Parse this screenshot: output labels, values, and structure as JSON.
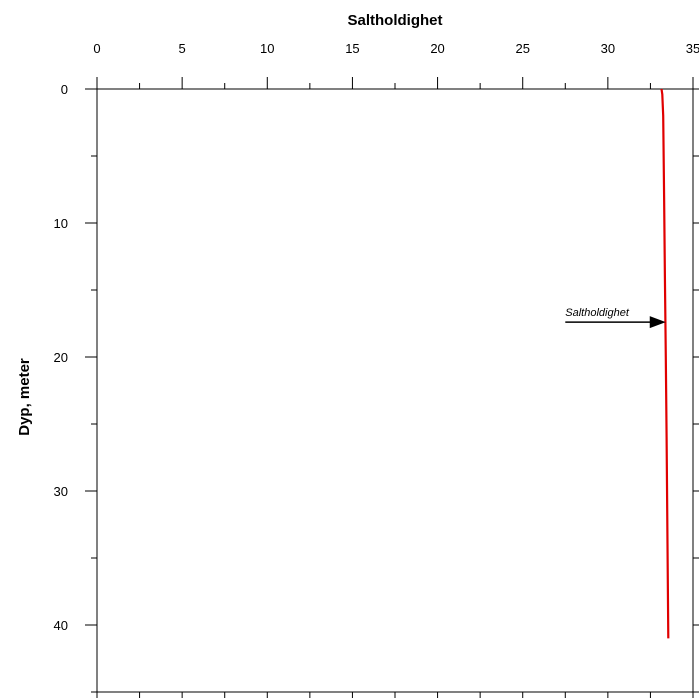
{
  "chart_data": {
    "type": "line",
    "title": "",
    "xlabel": "Saltholdighet",
    "ylabel": "Dyp, meter",
    "x_axis_position": "top",
    "y_axis_inverted": true,
    "xlim": [
      0,
      35
    ],
    "ylim": [
      45,
      0
    ],
    "xticks": [
      0,
      5,
      10,
      15,
      20,
      25,
      30,
      35
    ],
    "yticks": [
      0,
      10,
      20,
      30,
      40
    ],
    "grid": false,
    "series": [
      {
        "color": "#e00000",
        "points": [
          {
            "x": 33.15,
            "y": 0.0
          },
          {
            "x": 33.2,
            "y": 0.4
          },
          {
            "x": 33.25,
            "y": 2.0
          },
          {
            "x": 33.3,
            "y": 8.0
          },
          {
            "x": 33.35,
            "y": 14.0
          },
          {
            "x": 33.4,
            "y": 20.0
          },
          {
            "x": 33.45,
            "y": 26.0
          },
          {
            "x": 33.5,
            "y": 34.0
          },
          {
            "x": 33.55,
            "y": 41.0
          }
        ]
      }
    ],
    "annotations": [
      {
        "text": "Saltholdighet",
        "arrow_from": {
          "x": 27.5,
          "y": 17.4
        },
        "arrow_to": {
          "x": 33.4,
          "y": 17.4
        }
      }
    ]
  }
}
